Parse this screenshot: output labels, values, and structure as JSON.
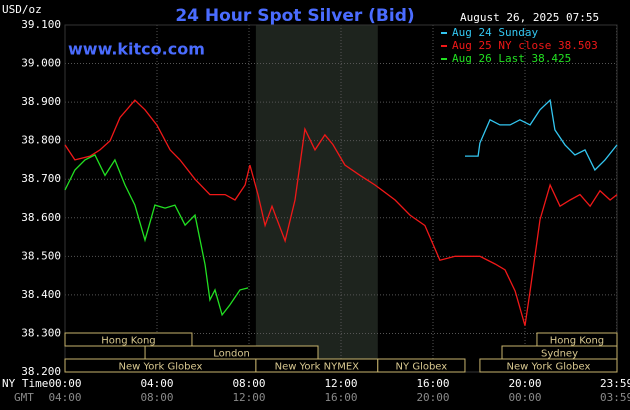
{
  "chart_data": {
    "type": "line",
    "title": "24 Hour Spot Silver (Bid)",
    "unit_label": "USD/oz",
    "site": "www.kitco.com",
    "timestamp": "August 26, 2025 07:55",
    "x_row_labels": [
      "NY Time",
      "GMT"
    ],
    "xlim": [
      0,
      24
    ],
    "xticks": [
      {
        "value": 0,
        "label": "00:00"
      },
      {
        "value": 4,
        "label": "04:00"
      },
      {
        "value": 8,
        "label": "08:00"
      },
      {
        "value": 12,
        "label": "12:00"
      },
      {
        "value": 16,
        "label": "16:00"
      },
      {
        "value": 20,
        "label": "20:00"
      },
      {
        "value": 23.983,
        "label": "23:59"
      }
    ],
    "gmt_labels": [
      "04:00",
      "08:00",
      "12:00",
      "16:00",
      "20:00",
      "00:00",
      "03:59"
    ],
    "ylim": [
      38.2,
      39.1
    ],
    "yticks": [
      {
        "value": 38.2,
        "label": "38.200"
      },
      {
        "value": 38.3,
        "label": "38.300"
      },
      {
        "value": 38.4,
        "label": "38.400"
      },
      {
        "value": 38.5,
        "label": "38.500"
      },
      {
        "value": 38.6,
        "label": "38.600"
      },
      {
        "value": 38.7,
        "label": "38.700"
      },
      {
        "value": 38.8,
        "label": "38.800"
      },
      {
        "value": 38.9,
        "label": "38.900"
      },
      {
        "value": 39.0,
        "label": "39.000"
      },
      {
        "value": 39.1,
        "label": "39.100"
      }
    ],
    "grid": true,
    "highlight_range": [
      8.3,
      13.6
    ],
    "session_rows": [
      [
        {
          "label": "Hong Kong",
          "start": 0,
          "end": 5.52
        },
        {
          "label": "Hong Kong",
          "start": 20.52,
          "end": 24
        }
      ],
      [
        {
          "label": "London",
          "start": 3.48,
          "end": 11
        },
        {
          "label": "Sydney",
          "start": 19,
          "end": 24
        }
      ],
      [
        {
          "label": "New York Globex",
          "start": 0,
          "end": 8.3
        },
        {
          "label": "New York NYMEX",
          "start": 8.3,
          "end": 13.6
        },
        {
          "label": "NY Globex",
          "start": 13.6,
          "end": 17.39
        },
        {
          "label": "New York Globex",
          "start": 18.04,
          "end": 24
        }
      ]
    ],
    "series": [
      {
        "name": "Aug 24 Sunday",
        "color": "#33c6f0",
        "x": [
          17.39,
          17.96,
          18.04,
          18.48,
          18.91,
          19.35,
          19.78,
          20.22,
          20.65,
          21.09,
          21.3,
          21.74,
          22.17,
          22.61,
          23.04,
          23.48,
          24
        ],
        "values": [
          38.76,
          38.76,
          38.794,
          38.854,
          38.841,
          38.841,
          38.854,
          38.841,
          38.88,
          38.905,
          38.828,
          38.789,
          38.763,
          38.776,
          38.724,
          38.75,
          38.789
        ]
      },
      {
        "name": "Aug 25 NY close 38.503",
        "color": "#f01818",
        "x": [
          0,
          0.43,
          1.09,
          1.52,
          1.96,
          2.39,
          3.04,
          3.48,
          4,
          4.57,
          5,
          5.65,
          6.3,
          6.96,
          7.39,
          7.83,
          8.04,
          8.39,
          8.7,
          9.0,
          9.57,
          10.0,
          10.43,
          10.87,
          11.3,
          11.65,
          12.17,
          12.83,
          13.48,
          14.35,
          15.0,
          15.65,
          16.3,
          16.96,
          18.04,
          18.7,
          19.13,
          19.57,
          20.0,
          20.22,
          20.65,
          21.09,
          21.52,
          21.96,
          22.39,
          22.83,
          23.26,
          23.7,
          24
        ],
        "values": [
          38.789,
          38.75,
          38.76,
          38.776,
          38.8,
          38.86,
          38.905,
          38.88,
          38.84,
          38.776,
          38.75,
          38.7,
          38.66,
          38.66,
          38.646,
          38.685,
          38.737,
          38.66,
          38.58,
          38.63,
          38.54,
          38.646,
          38.83,
          38.776,
          38.815,
          38.79,
          38.737,
          38.71,
          38.685,
          38.646,
          38.607,
          38.58,
          38.49,
          38.5,
          38.5,
          38.48,
          38.465,
          38.41,
          38.32,
          38.41,
          38.595,
          38.685,
          38.63,
          38.646,
          38.66,
          38.63,
          38.67,
          38.646,
          38.66
        ]
      },
      {
        "name": "Aug 26 Last 38.425",
        "color": "#22e022",
        "x": [
          0,
          0.43,
          0.87,
          1.3,
          1.74,
          2.17,
          2.61,
          3.04,
          3.48,
          3.91,
          4.35,
          4.78,
          5.22,
          5.65,
          6.09,
          6.3,
          6.52,
          6.83,
          7.17,
          7.61,
          7.96
        ],
        "values": [
          38.672,
          38.724,
          38.75,
          38.763,
          38.71,
          38.75,
          38.685,
          38.633,
          38.542,
          38.633,
          38.625,
          38.633,
          38.581,
          38.607,
          38.478,
          38.387,
          38.413,
          38.348,
          38.374,
          38.413,
          38.418
        ]
      }
    ]
  }
}
